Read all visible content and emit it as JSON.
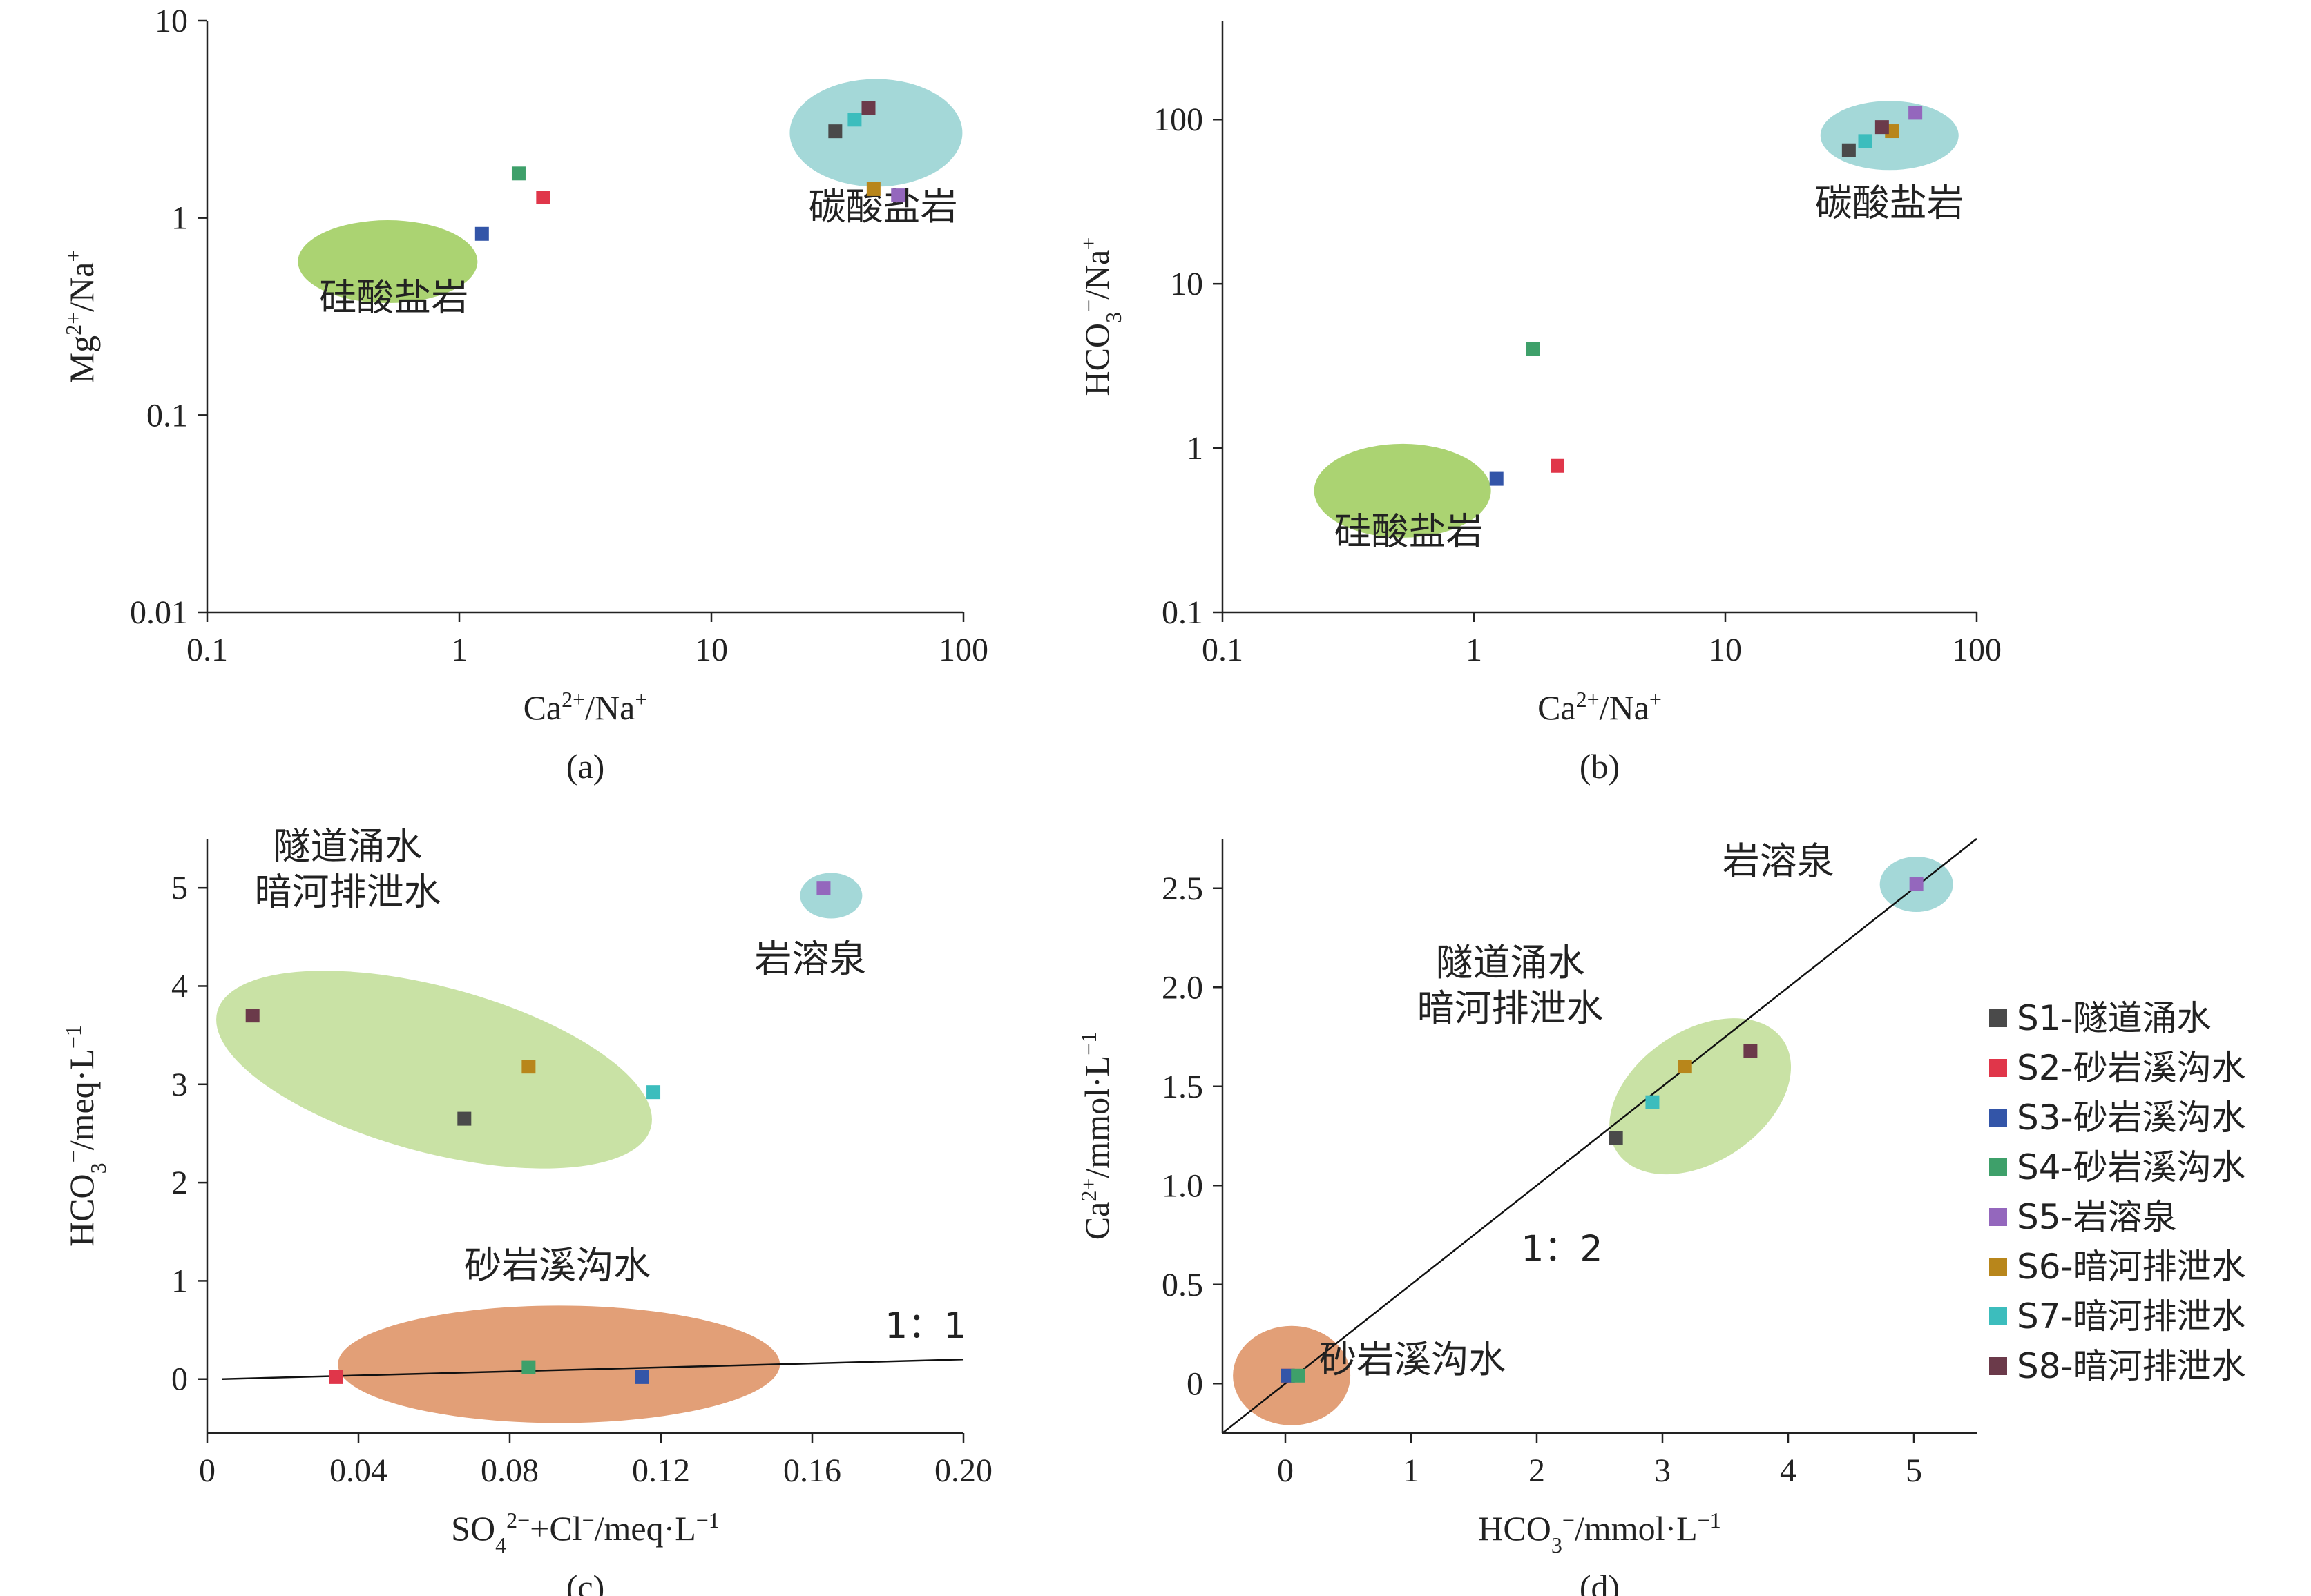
{
  "colors": {
    "S1": "#4a4a4a",
    "S2": "#e0364a",
    "S3": "#3355a8",
    "S4": "#3ea06a",
    "S5": "#9467bd",
    "S6": "#b8861b",
    "S7": "#3cbdbd",
    "S8": "#6b3a4a",
    "green_zone": "#a7d16a",
    "pale_green_zone": "#c6e0a0",
    "teal_zone": "#9fd6d6",
    "orange_zone": "#e09a70"
  },
  "legend": [
    {
      "id": "S1",
      "label": "S1-隧道涌水"
    },
    {
      "id": "S2",
      "label": "S2-砂岩溪沟水"
    },
    {
      "id": "S3",
      "label": "S3-砂岩溪沟水"
    },
    {
      "id": "S4",
      "label": "S4-砂岩溪沟水"
    },
    {
      "id": "S5",
      "label": "S5-岩溶泉"
    },
    {
      "id": "S6",
      "label": "S6-暗河排泄水"
    },
    {
      "id": "S7",
      "label": "S7-暗河排泄水"
    },
    {
      "id": "S8",
      "label": "S8-暗河排泄水"
    }
  ],
  "chart_data": [
    {
      "id": "a",
      "type": "scatter",
      "caption": "(a)",
      "xscale": "log",
      "yscale": "log",
      "xlim": [
        0.1,
        100
      ],
      "ylim": [
        0.01,
        10
      ],
      "xticks": [
        0.1,
        1,
        10,
        100
      ],
      "xtick_labels": [
        "0.1",
        "1",
        "10",
        "100"
      ],
      "yticks": [
        0.01,
        0.1,
        1,
        10
      ],
      "ytick_labels": [
        "0.01",
        "0.1",
        "1",
        "10"
      ],
      "xlabel": "Ca2+/Na+",
      "ylabel": "Mg2+/Na+",
      "points": [
        {
          "id": "S1",
          "x": 31,
          "y": 2.75
        },
        {
          "id": "S2",
          "x": 2.15,
          "y": 1.27
        },
        {
          "id": "S3",
          "x": 1.23,
          "y": 0.83
        },
        {
          "id": "S4",
          "x": 1.72,
          "y": 1.68
        },
        {
          "id": "S5",
          "x": 55,
          "y": 1.3
        },
        {
          "id": "S6",
          "x": 44,
          "y": 1.4
        },
        {
          "id": "S7",
          "x": 37,
          "y": 3.15
        },
        {
          "id": "S8",
          "x": 42,
          "y": 3.6
        }
      ],
      "zones": [
        {
          "label": "硅酸盐岩",
          "color": "green_zone",
          "cx": 0.52,
          "cy": 0.6,
          "label_x": 0.55,
          "label_y": 0.34
        },
        {
          "label": "碳酸盐岩",
          "color": "teal_zone",
          "cx": 45,
          "cy": 2.7,
          "label_x": 48,
          "label_y": 0.98
        }
      ]
    },
    {
      "id": "b",
      "type": "scatter",
      "caption": "(b)",
      "xscale": "log",
      "yscale": "log",
      "xlim": [
        0.1,
        100
      ],
      "ylim": [
        0.1,
        400
      ],
      "xticks": [
        0.1,
        1,
        10,
        100
      ],
      "xtick_labels": [
        "0.1",
        "1",
        "10",
        "100"
      ],
      "yticks": [
        0.1,
        1,
        10,
        100
      ],
      "ytick_labels": [
        "0.1",
        "1",
        "10",
        "100"
      ],
      "xlabel": "Ca2+/Na+",
      "ylabel": "HCO3-/Na+",
      "points": [
        {
          "id": "S1",
          "x": 31,
          "y": 65
        },
        {
          "id": "S2",
          "x": 2.15,
          "y": 0.78
        },
        {
          "id": "S3",
          "x": 1.23,
          "y": 0.65
        },
        {
          "id": "S4",
          "x": 1.72,
          "y": 4.0
        },
        {
          "id": "S5",
          "x": 57,
          "y": 110
        },
        {
          "id": "S6",
          "x": 46,
          "y": 85
        },
        {
          "id": "S7",
          "x": 36,
          "y": 74
        },
        {
          "id": "S8",
          "x": 42,
          "y": 90
        }
      ],
      "zones": [
        {
          "label": "硅酸盐岩",
          "color": "green_zone",
          "cx": 0.52,
          "cy": 0.55,
          "label_x": 0.55,
          "label_y": 0.26
        },
        {
          "label": "碳酸盐岩",
          "color": "teal_zone",
          "cx": 45,
          "cy": 80,
          "label_x": 45,
          "label_y": 26
        }
      ]
    },
    {
      "id": "c",
      "type": "scatter",
      "caption": "(c)",
      "xscale": "linear",
      "yscale": "linear",
      "xlim": [
        0,
        0.2
      ],
      "ylim": [
        -0.55,
        5.5
      ],
      "xticks": [
        0,
        0.04,
        0.08,
        0.12,
        0.16,
        0.2
      ],
      "xtick_labels": [
        "0",
        "0.04",
        "0.08",
        "0.12",
        "0.16",
        "0.20"
      ],
      "yticks": [
        0,
        1,
        2,
        3,
        4,
        5
      ],
      "ytick_labels": [
        "0",
        "1",
        "2",
        "3",
        "4",
        "5"
      ],
      "xlabel": "SO4 2-+Cl-/meq·L-1",
      "ylabel": "HCO3-/meq·L-1",
      "line_label": "1：1",
      "line": [
        [
          0.004,
          0.0
        ],
        [
          0.2,
          0.2
        ]
      ],
      "points": [
        {
          "id": "S1",
          "x": 0.068,
          "y": 2.65
        },
        {
          "id": "S2",
          "x": 0.034,
          "y": 0.02
        },
        {
          "id": "S3",
          "x": 0.115,
          "y": 0.02
        },
        {
          "id": "S4",
          "x": 0.085,
          "y": 0.12
        },
        {
          "id": "S5",
          "x": 0.163,
          "y": 5.0
        },
        {
          "id": "S6",
          "x": 0.085,
          "y": 3.18
        },
        {
          "id": "S7",
          "x": 0.118,
          "y": 2.92
        },
        {
          "id": "S8",
          "x": 0.012,
          "y": 3.7
        }
      ],
      "zones": [
        {
          "label_lines": [
            "隧道涌水",
            "暗河排泄水"
          ],
          "color": "pale_green_zone",
          "cx": 0.06,
          "cy": 3.15
        },
        {
          "label_lines": [
            "岩溶泉"
          ],
          "color": "teal_zone",
          "cx": 0.165,
          "cy": 4.92
        },
        {
          "label_lines": [
            "砂岩溪沟水"
          ],
          "color": "orange_zone",
          "cx": 0.093,
          "cy": 0.15
        }
      ]
    },
    {
      "id": "d",
      "type": "scatter",
      "caption": "(d)",
      "xscale": "linear",
      "yscale": "linear",
      "xlim": [
        -0.5,
        5.5
      ],
      "ylim": [
        -0.25,
        2.75
      ],
      "xticks": [
        0,
        1,
        2,
        3,
        4,
        5
      ],
      "xtick_labels": [
        "0",
        "1",
        "2",
        "3",
        "4",
        "5"
      ],
      "yticks": [
        0,
        0.5,
        1.0,
        1.5,
        2.0,
        2.5
      ],
      "ytick_labels": [
        "0",
        "0.5",
        "1.0",
        "1.5",
        "2.0",
        "2.5"
      ],
      "xlabel": "HCO3-/mmol·L-1",
      "ylabel": "Ca2+/mmol·L-1",
      "line_label": "1：2",
      "line": [
        [
          -0.5,
          -0.25
        ],
        [
          5.5,
          2.75
        ]
      ],
      "points": [
        {
          "id": "S1",
          "x": 2.63,
          "y": 1.24
        },
        {
          "id": "S2",
          "x": 0.02,
          "y": 0.04
        },
        {
          "id": "S3",
          "x": 0.02,
          "y": 0.04
        },
        {
          "id": "S4",
          "x": 0.1,
          "y": 0.04
        },
        {
          "id": "S5",
          "x": 5.02,
          "y": 2.52
        },
        {
          "id": "S6",
          "x": 3.18,
          "y": 1.6
        },
        {
          "id": "S7",
          "x": 2.92,
          "y": 1.42
        },
        {
          "id": "S8",
          "x": 3.7,
          "y": 1.68
        }
      ],
      "zones": [
        {
          "label_lines": [
            "隧道涌水",
            "暗河排泄水"
          ],
          "color": "pale_green_zone",
          "cx": 3.3,
          "cy": 1.45
        },
        {
          "label_lines": [
            "岩溶泉"
          ],
          "color": "teal_zone",
          "cx": 5.02,
          "cy": 2.52
        },
        {
          "label_lines": [
            "砂岩溪沟水"
          ],
          "color": "orange_zone",
          "cx": 0.05,
          "cy": 0.04
        }
      ]
    }
  ]
}
